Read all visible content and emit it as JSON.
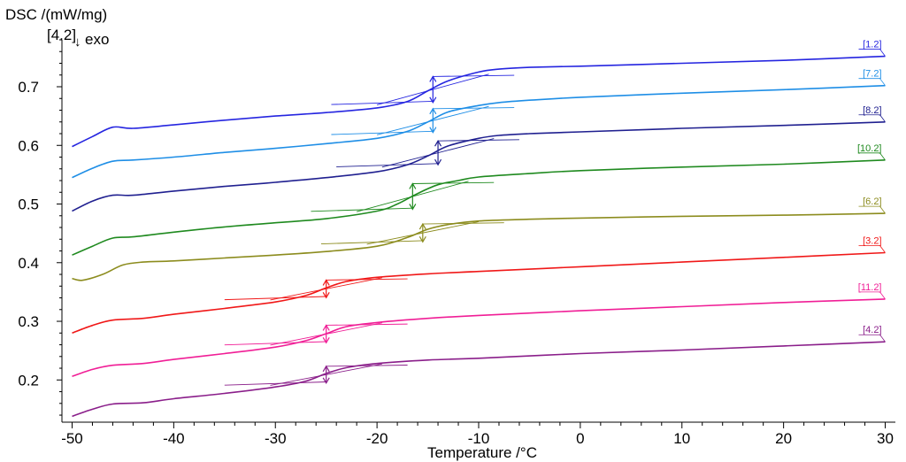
{
  "chart_data": {
    "type": "line",
    "title": "",
    "ylabel": "DSC /(mW/mg)",
    "xlabel": "Temperature /°C",
    "annotation": "[4.2]",
    "exo_label": "exo",
    "exo_arrow": "↓",
    "xlim": [
      -51,
      31
    ],
    "ylim": [
      0.128,
      0.78
    ],
    "x_ticks": [
      -50,
      -40,
      -30,
      -20,
      -10,
      0,
      10,
      20,
      30
    ],
    "y_ticks": [
      0.2,
      0.3,
      0.4,
      0.5,
      0.6,
      0.7
    ],
    "x_tick_labels": [
      "-50",
      "-40",
      "-30",
      "-20",
      "-10",
      "0",
      "10",
      "20",
      "30"
    ],
    "y_tick_labels": [
      "0.2",
      "0.3",
      "0.4",
      "0.5",
      "0.6",
      "0.7"
    ],
    "grid": false,
    "series": [
      {
        "name": "[1.2]",
        "color": "#2525e0",
        "tg": -14.5,
        "points": [
          [
            -50,
            0.598
          ],
          [
            -48,
            0.615
          ],
          [
            -46,
            0.631
          ],
          [
            -44,
            0.629
          ],
          [
            -40,
            0.635
          ],
          [
            -35,
            0.643
          ],
          [
            -30,
            0.65
          ],
          [
            -25,
            0.656
          ],
          [
            -20,
            0.664
          ],
          [
            -17,
            0.675
          ],
          [
            -15,
            0.693
          ],
          [
            -13,
            0.71
          ],
          [
            -10,
            0.725
          ],
          [
            -8,
            0.73
          ],
          [
            -5,
            0.733
          ],
          [
            0,
            0.735
          ],
          [
            10,
            0.74
          ],
          [
            20,
            0.745
          ],
          [
            30,
            0.752
          ]
        ]
      },
      {
        "name": "[7.2]",
        "color": "#1e8ee6",
        "tg": -14.5,
        "points": [
          [
            -50,
            0.545
          ],
          [
            -48,
            0.561
          ],
          [
            -46,
            0.573
          ],
          [
            -44,
            0.575
          ],
          [
            -40,
            0.58
          ],
          [
            -35,
            0.588
          ],
          [
            -30,
            0.595
          ],
          [
            -25,
            0.603
          ],
          [
            -20,
            0.612
          ],
          [
            -17,
            0.624
          ],
          [
            -15,
            0.64
          ],
          [
            -13,
            0.657
          ],
          [
            -10,
            0.668
          ],
          [
            -8,
            0.673
          ],
          [
            -5,
            0.677
          ],
          [
            0,
            0.682
          ],
          [
            10,
            0.689
          ],
          [
            20,
            0.695
          ],
          [
            30,
            0.702
          ]
        ]
      },
      {
        "name": "[8.2]",
        "color": "#202090",
        "tg": -14.0,
        "points": [
          [
            -50,
            0.488
          ],
          [
            -48,
            0.505
          ],
          [
            -46,
            0.515
          ],
          [
            -44,
            0.515
          ],
          [
            -40,
            0.522
          ],
          [
            -35,
            0.53
          ],
          [
            -30,
            0.537
          ],
          [
            -25,
            0.545
          ],
          [
            -20,
            0.555
          ],
          [
            -17,
            0.567
          ],
          [
            -15,
            0.582
          ],
          [
            -13,
            0.599
          ],
          [
            -10,
            0.612
          ],
          [
            -8,
            0.617
          ],
          [
            -5,
            0.62
          ],
          [
            0,
            0.623
          ],
          [
            10,
            0.629
          ],
          [
            20,
            0.634
          ],
          [
            30,
            0.64
          ]
        ]
      },
      {
        "name": "[10.2]",
        "color": "#1f8a1f",
        "tg": -16.5,
        "points": [
          [
            -50,
            0.413
          ],
          [
            -48,
            0.428
          ],
          [
            -46,
            0.442
          ],
          [
            -44,
            0.444
          ],
          [
            -40,
            0.452
          ],
          [
            -35,
            0.461
          ],
          [
            -30,
            0.468
          ],
          [
            -25,
            0.475
          ],
          [
            -20,
            0.488
          ],
          [
            -18,
            0.5
          ],
          [
            -16,
            0.518
          ],
          [
            -14,
            0.533
          ],
          [
            -12,
            0.54
          ],
          [
            -10,
            0.546
          ],
          [
            -5,
            0.552
          ],
          [
            0,
            0.557
          ],
          [
            10,
            0.563
          ],
          [
            20,
            0.568
          ],
          [
            30,
            0.575
          ]
        ]
      },
      {
        "name": "[6.2]",
        "color": "#8c8c1e",
        "tg": -15.5,
        "points": [
          [
            -50,
            0.373
          ],
          [
            -49,
            0.37
          ],
          [
            -47,
            0.38
          ],
          [
            -45,
            0.396
          ],
          [
            -43,
            0.401
          ],
          [
            -40,
            0.403
          ],
          [
            -35,
            0.408
          ],
          [
            -30,
            0.413
          ],
          [
            -25,
            0.419
          ],
          [
            -20,
            0.428
          ],
          [
            -17,
            0.443
          ],
          [
            -15,
            0.457
          ],
          [
            -13,
            0.465
          ],
          [
            -10,
            0.471
          ],
          [
            -5,
            0.474
          ],
          [
            0,
            0.476
          ],
          [
            10,
            0.479
          ],
          [
            20,
            0.481
          ],
          [
            30,
            0.484
          ]
        ]
      },
      {
        "name": "[3.2]",
        "color": "#f01818",
        "tg": -25.0,
        "points": [
          [
            -50,
            0.28
          ],
          [
            -48,
            0.293
          ],
          [
            -46,
            0.302
          ],
          [
            -43,
            0.305
          ],
          [
            -40,
            0.312
          ],
          [
            -35,
            0.322
          ],
          [
            -30,
            0.333
          ],
          [
            -27,
            0.344
          ],
          [
            -25,
            0.357
          ],
          [
            -23,
            0.368
          ],
          [
            -20,
            0.375
          ],
          [
            -15,
            0.381
          ],
          [
            -10,
            0.385
          ],
          [
            0,
            0.393
          ],
          [
            10,
            0.401
          ],
          [
            20,
            0.409
          ],
          [
            30,
            0.417
          ]
        ]
      },
      {
        "name": "[11.2]",
        "color": "#f01e96",
        "tg": -25.0,
        "points": [
          [
            -50,
            0.206
          ],
          [
            -48,
            0.218
          ],
          [
            -46,
            0.225
          ],
          [
            -43,
            0.228
          ],
          [
            -40,
            0.235
          ],
          [
            -35,
            0.245
          ],
          [
            -30,
            0.256
          ],
          [
            -27,
            0.267
          ],
          [
            -25,
            0.279
          ],
          [
            -23,
            0.291
          ],
          [
            -20,
            0.298
          ],
          [
            -15,
            0.305
          ],
          [
            -10,
            0.31
          ],
          [
            0,
            0.318
          ],
          [
            10,
            0.325
          ],
          [
            20,
            0.332
          ],
          [
            30,
            0.338
          ]
        ]
      },
      {
        "name": "[4.2]",
        "color": "#8a1e8a",
        "tg": -25.0,
        "points": [
          [
            -50,
            0.138
          ],
          [
            -48,
            0.15
          ],
          [
            -46,
            0.159
          ],
          [
            -43,
            0.161
          ],
          [
            -40,
            0.168
          ],
          [
            -35,
            0.177
          ],
          [
            -30,
            0.188
          ],
          [
            -27,
            0.198
          ],
          [
            -25,
            0.211
          ],
          [
            -23,
            0.221
          ],
          [
            -20,
            0.228
          ],
          [
            -15,
            0.234
          ],
          [
            -10,
            0.237
          ],
          [
            0,
            0.245
          ],
          [
            10,
            0.251
          ],
          [
            20,
            0.258
          ],
          [
            30,
            0.265
          ]
        ]
      }
    ]
  }
}
